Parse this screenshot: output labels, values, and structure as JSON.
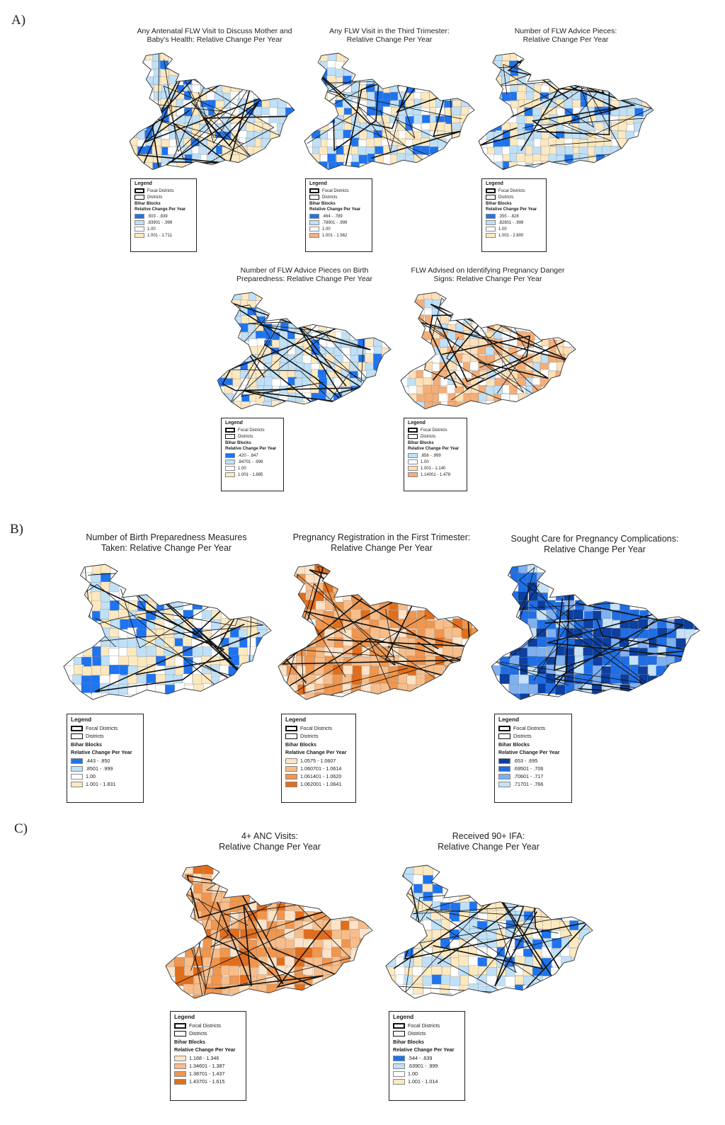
{
  "figure": {
    "sections": [
      {
        "label": "A)",
        "panels": [
          {
            "title": [
              "Any Antenatal FLW Visit to Discuss Mother and",
              "Baby's Health: Relative Change Per Year"
            ],
            "palette": "blue",
            "legend": {
              "title": "Legend",
              "focal": "Focal Districts",
              "districts": "Districts",
              "group": "Bihar Blocks",
              "measure": "Relative Change Per Year",
              "classes": [
                {
                  "label": ".503 - .839",
                  "color": "#1e74f0"
                },
                {
                  "label": ".83901 - .999",
                  "color": "#bfe0f7"
                },
                {
                  "label": "1.00",
                  "color": "#ffffff"
                },
                {
                  "label": "1.001 - 1.711",
                  "color": "#fde9c0"
                }
              ]
            }
          },
          {
            "title": [
              "Any FLW Visit in the Third Trimester:",
              "Relative Change Per Year"
            ],
            "palette": "blue",
            "legend": {
              "title": "Legend",
              "focal": "Focal Districts",
              "districts": "Districts",
              "group": "Bihar Blocks",
              "measure": "Relative Change Per Year",
              "classes": [
                {
                  "label": ".464 - .789",
                  "color": "#1e74f0"
                },
                {
                  "label": ".78901 - .999",
                  "color": "#bfe0f7"
                },
                {
                  "label": "1.00",
                  "color": "#ffffff"
                },
                {
                  "label": "1.001 - 1.562",
                  "color": "#f4b183"
                }
              ]
            }
          },
          {
            "title": [
              "Number of FLW Advice Pieces:",
              "Relative Change Per Year"
            ],
            "palette": "blue",
            "legend": {
              "title": "Legend",
              "focal": "Focal Districts",
              "districts": "Districts",
              "group": "Bihar Blocks",
              "measure": "Relative Change Per Year",
              "classes": [
                {
                  "label": ".355 - .828",
                  "color": "#1e74f0"
                },
                {
                  "label": ".82801 - .999",
                  "color": "#bfe0f7"
                },
                {
                  "label": "1.00",
                  "color": "#ffffff"
                },
                {
                  "label": "1.001 - 2.800",
                  "color": "#fde9c0"
                }
              ]
            }
          },
          {
            "title": [
              "Number of FLW Advice Pieces on Birth",
              "Preparedness: Relative Change Per Year"
            ],
            "palette": "blue",
            "legend": {
              "title": "Legend",
              "focal": "Focal Districts",
              "districts": "Districts",
              "group": "Bihar Blocks",
              "measure": "Relative Change Per Year",
              "classes": [
                {
                  "label": ".420 - .847",
                  "color": "#1e74f0"
                },
                {
                  "label": ".84701 - .999",
                  "color": "#bfe0f7"
                },
                {
                  "label": "1.00",
                  "color": "#ffffff"
                },
                {
                  "label": "1.001 - 1.885",
                  "color": "#fde9c0"
                }
              ]
            }
          },
          {
            "title": [
              "FLW Advised on Identifying Pregnancy Danger",
              "Signs: Relative Change Per Year"
            ],
            "palette": "peach",
            "legend": {
              "title": "Legend",
              "focal": "Focal Districts",
              "districts": "Districts",
              "group": "Bihar Blocks",
              "measure": "Relative Change Per Year",
              "classes": [
                {
                  "label": ".856 - .999",
                  "color": "#bfe0f7"
                },
                {
                  "label": "1.00",
                  "color": "#ffffff"
                },
                {
                  "label": "1.001 - 1.140",
                  "color": "#fde0b8"
                },
                {
                  "label": "1.14001 - 1.478",
                  "color": "#f4ae78"
                }
              ]
            }
          }
        ]
      },
      {
        "label": "B)",
        "panels": [
          {
            "title": [
              "Number of Birth Preparedness Measures",
              "Taken: Relative Change Per Year"
            ],
            "palette": "blue",
            "legend": {
              "title": "Legend",
              "focal": "Focal Districts",
              "districts": "Districts",
              "group": "Bihar Blocks",
              "measure": "Relative Change Per Year",
              "classes": [
                {
                  "label": ".443 - .850",
                  "color": "#1e74f0"
                },
                {
                  "label": ".8501 - .999",
                  "color": "#bfe0f7"
                },
                {
                  "label": "1.00",
                  "color": "#ffffff"
                },
                {
                  "label": "1.001 - 1.831",
                  "color": "#fde9c0"
                }
              ]
            }
          },
          {
            "title": [
              "Pregnancy Registration in the First Trimester:",
              "Relative Change Per Year"
            ],
            "palette": "orange",
            "legend": {
              "title": "Legend",
              "focal": "Focal Districts",
              "districts": "Districts",
              "group": "Bihar Blocks",
              "measure": "Relative Change Per Year",
              "classes": [
                {
                  "label": "1.0575 - 1.0607",
                  "color": "#fde3c8"
                },
                {
                  "label": "1.060701 - 1.0614",
                  "color": "#f7bd8a"
                },
                {
                  "label": "1.061401 - 1.0620",
                  "color": "#f0964e"
                },
                {
                  "label": "1.062001 - 1.0641",
                  "color": "#e26e1c"
                }
              ]
            }
          },
          {
            "title": [
              "Sought Care for Pregnancy Complications:",
              "Relative Change Per Year"
            ],
            "palette": "deepblue",
            "legend": {
              "title": "Legend",
              "focal": "Focal Districts",
              "districts": "Districts",
              "group": "Bihar Blocks",
              "measure": "Relative Change Per Year",
              "classes": [
                {
                  "label": ".653 - .695",
                  "color": "#0b3fa0"
                },
                {
                  "label": ".69501 - .706",
                  "color": "#1e6ee8"
                },
                {
                  "label": ".70601 - .717",
                  "color": "#7fb0f0"
                },
                {
                  "label": ".71701 - .766",
                  "color": "#c6e2f7"
                }
              ]
            }
          }
        ]
      },
      {
        "label": "C)",
        "panels": [
          {
            "title": [
              "4+ ANC Visits:",
              "Relative Change Per Year"
            ],
            "palette": "orange",
            "legend": {
              "title": "Legend",
              "focal": "Focal Districts",
              "districts": "Districts",
              "group": "Bihar Blocks",
              "measure": "Relative Change Per Year",
              "classes": [
                {
                  "label": "1.168 - 1.346",
                  "color": "#fde3c8"
                },
                {
                  "label": "1.34601 - 1.387",
                  "color": "#f7bd8a"
                },
                {
                  "label": "1.38701 - 1.437",
                  "color": "#f0964e"
                },
                {
                  "label": "1.43701 - 1.615",
                  "color": "#e26e1c"
                }
              ]
            }
          },
          {
            "title": [
              "Received 90+ IFA:",
              "Relative Change Per Year"
            ],
            "palette": "blue",
            "legend": {
              "title": "Legend",
              "focal": "Focal Districts",
              "districts": "Districts",
              "group": "Bihar Blocks",
              "measure": "Relative Change Per Year",
              "classes": [
                {
                  "label": ".544 - .639",
                  "color": "#1e74f0"
                },
                {
                  "label": ".63901 - .999",
                  "color": "#bfe0f7"
                },
                {
                  "label": "1.00",
                  "color": "#ffffff"
                },
                {
                  "label": "1.001 - 1.014",
                  "color": "#fde9c0"
                }
              ]
            }
          }
        ]
      }
    ]
  },
  "palettes": {
    "blue": [
      "#1e74f0",
      "#bfe0f7",
      "#ffffff",
      "#fde9c0",
      "#bfe0f7",
      "#fde9c0"
    ],
    "peach": [
      "#bfe0f7",
      "#ffffff",
      "#fde0b8",
      "#f4ae78",
      "#fde0b8",
      "#f4ae78"
    ],
    "orange": [
      "#fde3c8",
      "#f7bd8a",
      "#f0964e",
      "#e26e1c",
      "#f0964e",
      "#f7bd8a"
    ],
    "deepblue": [
      "#0b3fa0",
      "#1e6ee8",
      "#7fb0f0",
      "#c6e2f7",
      "#1e6ee8",
      "#0b3fa0"
    ]
  }
}
